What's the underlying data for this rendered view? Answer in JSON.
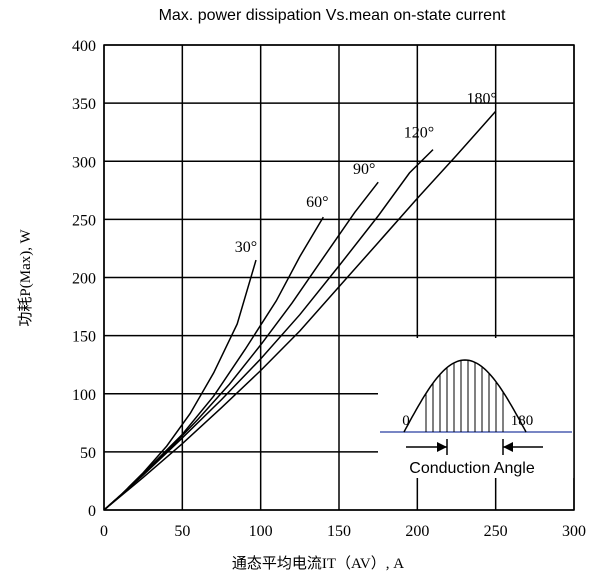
{
  "chart_data": {
    "type": "line",
    "title": "Max. power dissipation Vs.mean on-state current",
    "xlabel": "通态平均电流IT（AV）, A",
    "ylabel": "功耗P(Max), W",
    "xlim": [
      0,
      300
    ],
    "ylim": [
      0,
      400
    ],
    "x_ticks": [
      "0",
      "50",
      "100",
      "150",
      "200",
      "250",
      "300"
    ],
    "y_ticks": [
      "0",
      "50",
      "100",
      "150",
      "200",
      "250",
      "300",
      "350",
      "400"
    ],
    "x_tick_values": [
      0,
      50,
      100,
      150,
      200,
      250,
      300
    ],
    "y_tick_values": [
      0,
      50,
      100,
      150,
      200,
      250,
      300,
      350,
      400
    ],
    "grid": true,
    "series": [
      {
        "name": "30°",
        "points": [
          [
            0,
            0
          ],
          [
            10,
            12
          ],
          [
            25,
            32
          ],
          [
            40,
            55
          ],
          [
            55,
            83
          ],
          [
            70,
            118
          ],
          [
            85,
            160
          ],
          [
            97,
            215
          ]
        ]
      },
      {
        "name": "60°",
        "points": [
          [
            0,
            0
          ],
          [
            15,
            18
          ],
          [
            30,
            38
          ],
          [
            50,
            65
          ],
          [
            70,
            98
          ],
          [
            90,
            138
          ],
          [
            110,
            180
          ],
          [
            125,
            218
          ],
          [
            140,
            252
          ]
        ]
      },
      {
        "name": "90°",
        "points": [
          [
            0,
            0
          ],
          [
            20,
            24
          ],
          [
            40,
            50
          ],
          [
            60,
            78
          ],
          [
            80,
            108
          ],
          [
            100,
            142
          ],
          [
            120,
            178
          ],
          [
            140,
            217
          ],
          [
            160,
            256
          ],
          [
            175,
            282
          ]
        ]
      },
      {
        "name": "120°",
        "points": [
          [
            0,
            0
          ],
          [
            25,
            30
          ],
          [
            50,
            62
          ],
          [
            75,
            95
          ],
          [
            100,
            130
          ],
          [
            125,
            168
          ],
          [
            150,
            210
          ],
          [
            175,
            253
          ],
          [
            195,
            290
          ],
          [
            210,
            310
          ]
        ]
      },
      {
        "name": "180°",
        "points": [
          [
            0,
            0
          ],
          [
            25,
            28
          ],
          [
            50,
            57
          ],
          [
            75,
            88
          ],
          [
            100,
            120
          ],
          [
            125,
            154
          ],
          [
            150,
            192
          ],
          [
            175,
            230
          ],
          [
            200,
            268
          ],
          [
            225,
            305
          ],
          [
            250,
            343
          ]
        ]
      }
    ],
    "inset": {
      "label_start": "0",
      "label_end": "180",
      "caption": "Conduction Angle"
    }
  }
}
